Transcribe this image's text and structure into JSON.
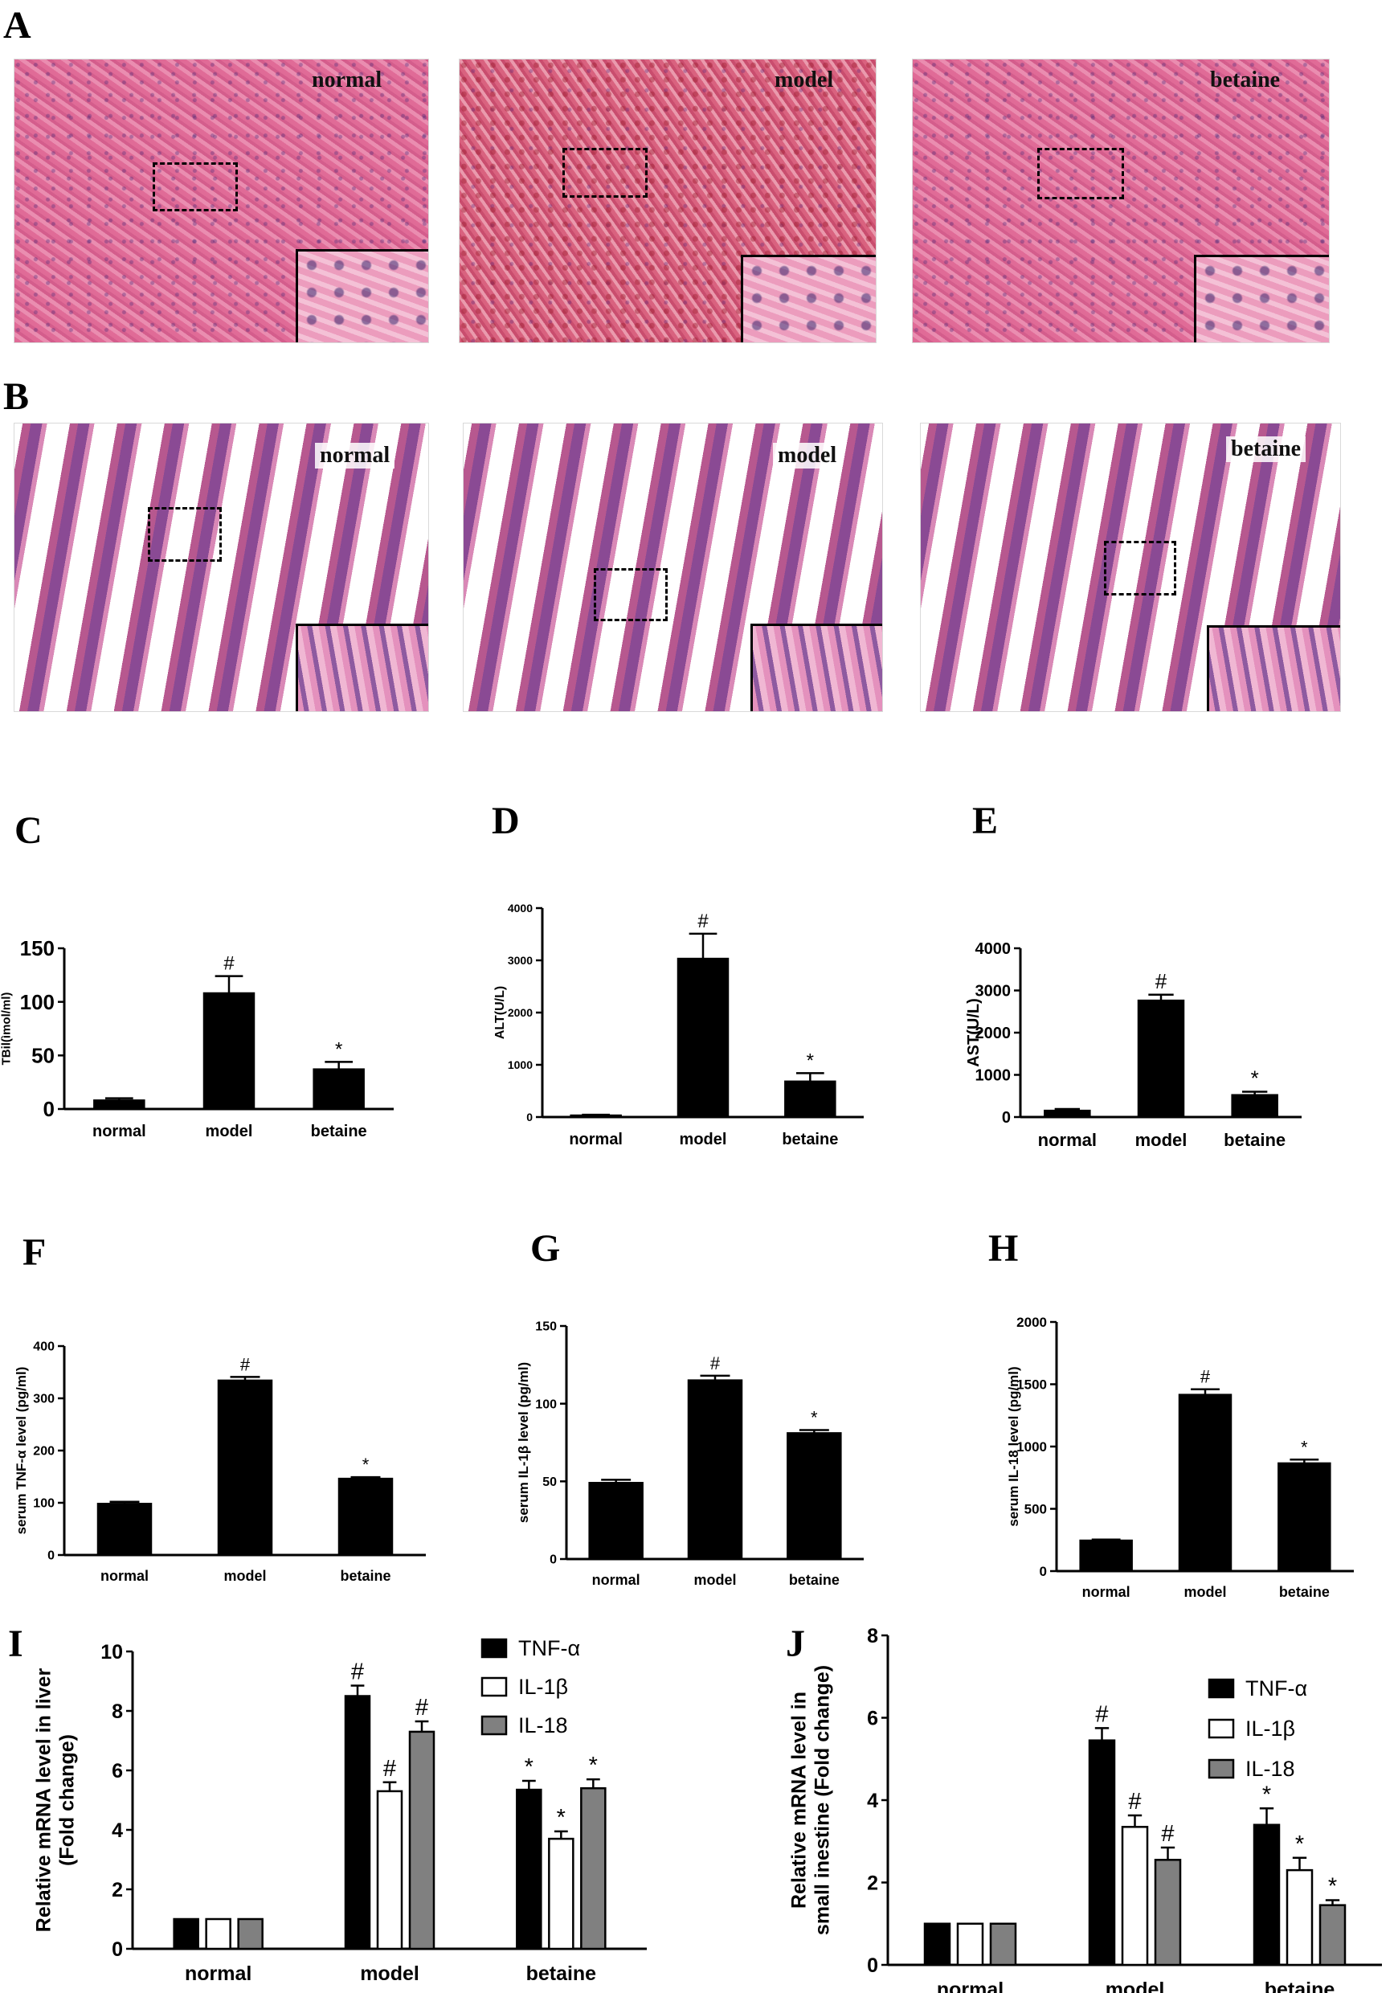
{
  "panel_letters": {
    "A": "A",
    "B": "B",
    "C": "C",
    "D": "D",
    "E": "E",
    "F": "F",
    "G": "G",
    "H": "H",
    "I": "I",
    "J": "J"
  },
  "histology": {
    "A": {
      "labels": [
        "normal",
        "model",
        "betaine"
      ]
    },
    "B": {
      "labels": [
        "normal",
        "model",
        "betaine"
      ]
    }
  },
  "chart_data": [
    {
      "id": "C",
      "type": "bar",
      "categories": [
        "normal",
        "model",
        "betaine"
      ],
      "values": [
        8,
        108,
        37
      ],
      "errors": [
        2,
        16,
        7
      ],
      "marks": [
        "",
        "#",
        "*"
      ],
      "ylabel": "TBil(ìmol/ml)",
      "ylim": [
        0,
        150
      ],
      "yticks": [
        0,
        50,
        100,
        150
      ],
      "ytick_labels": [
        "0",
        "50",
        "100",
        "150"
      ]
    },
    {
      "id": "D",
      "type": "bar",
      "categories": [
        "normal",
        "model",
        "betaine"
      ],
      "values": [
        30,
        3030,
        680
      ],
      "errors": [
        15,
        480,
        160
      ],
      "marks": [
        "",
        "#",
        "*"
      ],
      "ylabel": "ALT(U/L)",
      "ylim": [
        0,
        4000
      ],
      "yticks": [
        0,
        1000,
        2000,
        3000,
        4000
      ],
      "ytick_labels": [
        "0",
        "1000",
        "2000",
        "3000",
        "4000"
      ]
    },
    {
      "id": "E",
      "type": "bar",
      "categories": [
        "normal",
        "model",
        "betaine"
      ],
      "values": [
        150,
        2760,
        520
      ],
      "errors": [
        40,
        140,
        80
      ],
      "marks": [
        "",
        "#",
        "*"
      ],
      "ylabel": "AST(U/L)",
      "ylim": [
        0,
        4000
      ],
      "yticks": [
        0,
        1000,
        2000,
        3000,
        4000
      ],
      "ytick_labels": [
        "0",
        "1000",
        "2000",
        "3000",
        "4000"
      ]
    },
    {
      "id": "F",
      "type": "bar",
      "categories": [
        "normal",
        "model",
        "betaine"
      ],
      "values": [
        98,
        334,
        146
      ],
      "errors": [
        4,
        7,
        3
      ],
      "marks": [
        "",
        "#",
        "*"
      ],
      "ylabel": "serum TNF-α level (pg/ml)",
      "ylim": [
        0,
        400
      ],
      "yticks": [
        0,
        100,
        200,
        300,
        400
      ],
      "ytick_labels": [
        "0",
        "100",
        "200",
        "300",
        "400"
      ]
    },
    {
      "id": "G",
      "type": "bar",
      "categories": [
        "normal",
        "model",
        "betaine"
      ],
      "values": [
        49,
        115,
        81
      ],
      "errors": [
        2,
        3,
        2
      ],
      "marks": [
        "",
        "#",
        "*"
      ],
      "ylabel": "serum IL-1β level (pg/ml)",
      "ylim": [
        0,
        150
      ],
      "yticks": [
        0,
        50,
        100,
        150
      ],
      "ytick_labels": [
        "0",
        "50",
        "100",
        "150"
      ]
    },
    {
      "id": "H",
      "type": "bar",
      "categories": [
        "normal",
        "model",
        "betaine"
      ],
      "values": [
        245,
        1415,
        865
      ],
      "errors": [
        8,
        45,
        30
      ],
      "marks": [
        "",
        "#",
        "*"
      ],
      "ylabel": "serum IL-18 level (pg/ml)",
      "ylim": [
        0,
        2000
      ],
      "yticks": [
        0,
        500,
        1000,
        1500,
        2000
      ],
      "ytick_labels": [
        "0",
        "500",
        "1000",
        "1500",
        "2000"
      ]
    },
    {
      "id": "I",
      "type": "bar",
      "categories": [
        "normal",
        "model",
        "betaine"
      ],
      "series": [
        {
          "name": "TNF-α",
          "values": [
            1,
            8.5,
            5.35
          ],
          "errors": [
            0,
            0.35,
            0.3
          ],
          "marks": [
            "",
            "#",
            "*"
          ]
        },
        {
          "name": "IL-1β",
          "values": [
            1,
            5.3,
            3.7
          ],
          "errors": [
            0,
            0.3,
            0.25
          ],
          "marks": [
            "",
            "#",
            "*"
          ]
        },
        {
          "name": "IL-18",
          "values": [
            1,
            7.3,
            5.4
          ],
          "errors": [
            0,
            0.35,
            0.3
          ],
          "marks": [
            "",
            "#",
            "*"
          ]
        }
      ],
      "ylabel": "Relative mRNA level in liver (Fold change)",
      "ylim": [
        0,
        10
      ],
      "yticks": [
        0,
        2,
        4,
        6,
        8,
        10
      ],
      "ytick_labels": [
        "0",
        "2",
        "4",
        "6",
        "8",
        "10"
      ],
      "legend": "top-right"
    },
    {
      "id": "J",
      "type": "bar",
      "categories": [
        "normal",
        "model",
        "betaine"
      ],
      "series": [
        {
          "name": "TNF-α",
          "values": [
            1,
            5.45,
            3.4
          ],
          "errors": [
            0,
            0.3,
            0.4
          ],
          "marks": [
            "",
            "#",
            "*"
          ]
        },
        {
          "name": "IL-1β",
          "values": [
            1,
            3.35,
            2.3
          ],
          "errors": [
            0,
            0.28,
            0.3
          ],
          "marks": [
            "",
            "#",
            "*"
          ]
        },
        {
          "name": "IL-18",
          "values": [
            1,
            2.55,
            1.45
          ],
          "errors": [
            0,
            0.3,
            0.12
          ],
          "marks": [
            "",
            "#",
            "*"
          ]
        }
      ],
      "ylabel": "Relative mRNA level in small inestine (Fold change)",
      "ylim": [
        0,
        8
      ],
      "yticks": [
        0,
        2,
        4,
        6,
        8
      ],
      "ytick_labels": [
        "0",
        "2",
        "4",
        "6",
        "8"
      ],
      "legend": "top-right"
    }
  ]
}
